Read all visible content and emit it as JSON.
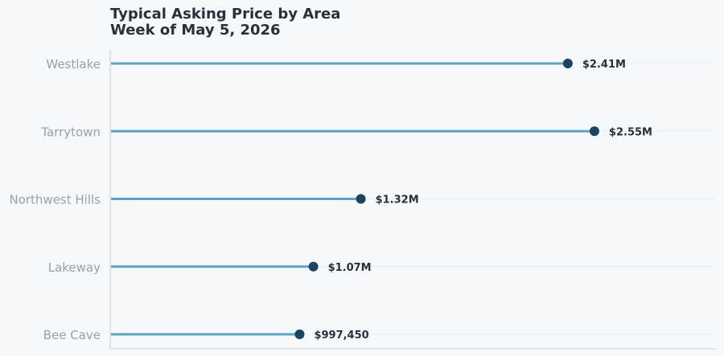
{
  "chart_data": {
    "type": "lollipop",
    "title": "Typical Asking Price by Area",
    "subtitle": "Week of May 5, 2026",
    "categories": [
      "Westlake",
      "Tarrytown",
      "Northwest Hills",
      "Lakeway",
      "Bee Cave"
    ],
    "values": [
      2410000,
      2550000,
      1320000,
      1070000,
      997450
    ],
    "value_labels": [
      "$2.41M",
      "$2.55M",
      "$1.32M",
      "$1.07M",
      "$997,450"
    ],
    "xlim": [
      0,
      3190000
    ],
    "grid": "horizontal",
    "colors": {
      "stem": "#5fa3c4",
      "dot": "#1c4461",
      "text": "#2b2f3a",
      "category_text": "#9aa0a8",
      "axis": "#cccccc",
      "grid": "#e8eef3",
      "background": "#f5f9fc"
    }
  }
}
